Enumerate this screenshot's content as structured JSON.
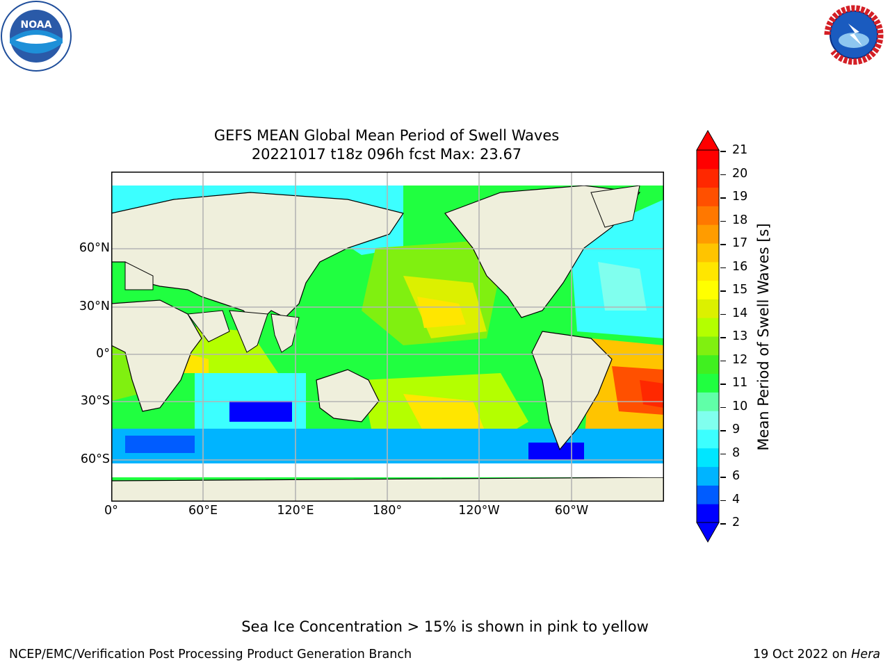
{
  "header": {
    "title_line1": "GEFS MEAN Global Mean Period of Swell Waves",
    "title_line2": "20221017 t18z 096h fcst   Max: 23.67"
  },
  "logos": {
    "left": {
      "text": "NOAA",
      "icon": "noaa-logo",
      "color": "#1f4e9b"
    },
    "right": {
      "text": "NATIONAL WEATHER SERVICE",
      "icon": "nws-logo",
      "color": "#d41f26"
    }
  },
  "map": {
    "lat_labels": [
      "60°N",
      "30°N",
      "0°",
      "30°S",
      "60°S"
    ],
    "lon_labels": [
      "0°",
      "60°E",
      "120°E",
      "180°",
      "120°W",
      "60°W"
    ],
    "colors": {
      "land": "#efefdc",
      "grid": "#b4b4b4"
    }
  },
  "colorbar": {
    "label": "Mean Period of Swell Waves [s]",
    "ticks": [
      "21",
      "20",
      "19",
      "18",
      "17",
      "16",
      "15",
      "14",
      "13",
      "12",
      "11",
      "10",
      "9",
      "8",
      "6",
      "4",
      "2"
    ],
    "colors": [
      "#0000ff",
      "#005cff",
      "#00b4ff",
      "#00e6ff",
      "#3cffff",
      "#80ffee",
      "#60ffa8",
      "#20ff40",
      "#40f020",
      "#80f010",
      "#b4ff00",
      "#dcf000",
      "#ffff00",
      "#ffe600",
      "#ffc400",
      "#ff9c00",
      "#ff7800",
      "#ff5000",
      "#ff2800",
      "#ff0000"
    ],
    "min_color": "#0000ff",
    "max_color": "#ff0000"
  },
  "footer": {
    "note": "Sea Ice Concentration > 15% is shown in pink to yellow",
    "left": "NCEP/EMC/Verification Post Processing Product Generation Branch",
    "right_date": "19 Oct 2022 on ",
    "right_host": "Hera"
  }
}
